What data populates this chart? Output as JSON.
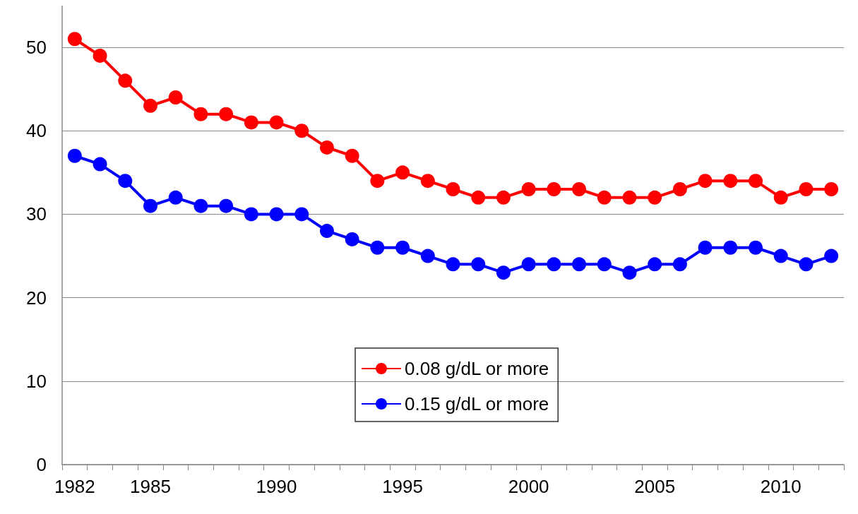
{
  "chart_data": {
    "type": "line",
    "categories": [
      "1982",
      null,
      null,
      "1985",
      null,
      null,
      null,
      null,
      "1990",
      null,
      null,
      null,
      null,
      "1995",
      null,
      null,
      null,
      null,
      "2000",
      null,
      null,
      null,
      null,
      "2005",
      null,
      null,
      null,
      null,
      "2010",
      null,
      null
    ],
    "series": [
      {
        "name": "0.08 g/dL or more",
        "color": "#ff0000",
        "values": [
          51,
          49,
          46,
          43,
          44,
          42,
          42,
          41,
          41,
          40,
          38,
          37,
          34,
          35,
          34,
          33,
          32,
          32,
          33,
          33,
          33,
          32,
          32,
          32,
          33,
          34,
          34,
          34,
          32,
          33,
          33
        ]
      },
      {
        "name": "0.15 g/dL or more",
        "color": "#0000ff",
        "values": [
          37,
          36,
          34,
          31,
          32,
          31,
          31,
          30,
          30,
          30,
          28,
          27,
          26,
          26,
          25,
          24,
          24,
          23,
          24,
          24,
          24,
          24,
          23,
          24,
          24,
          26,
          26,
          26,
          25,
          24,
          25
        ]
      }
    ],
    "ylim": [
      0,
      55
    ],
    "yticks": [
      0,
      10,
      20,
      30,
      40,
      50
    ],
    "grid": "y",
    "legend": "center",
    "marker": "circle",
    "line_style": "solid"
  }
}
